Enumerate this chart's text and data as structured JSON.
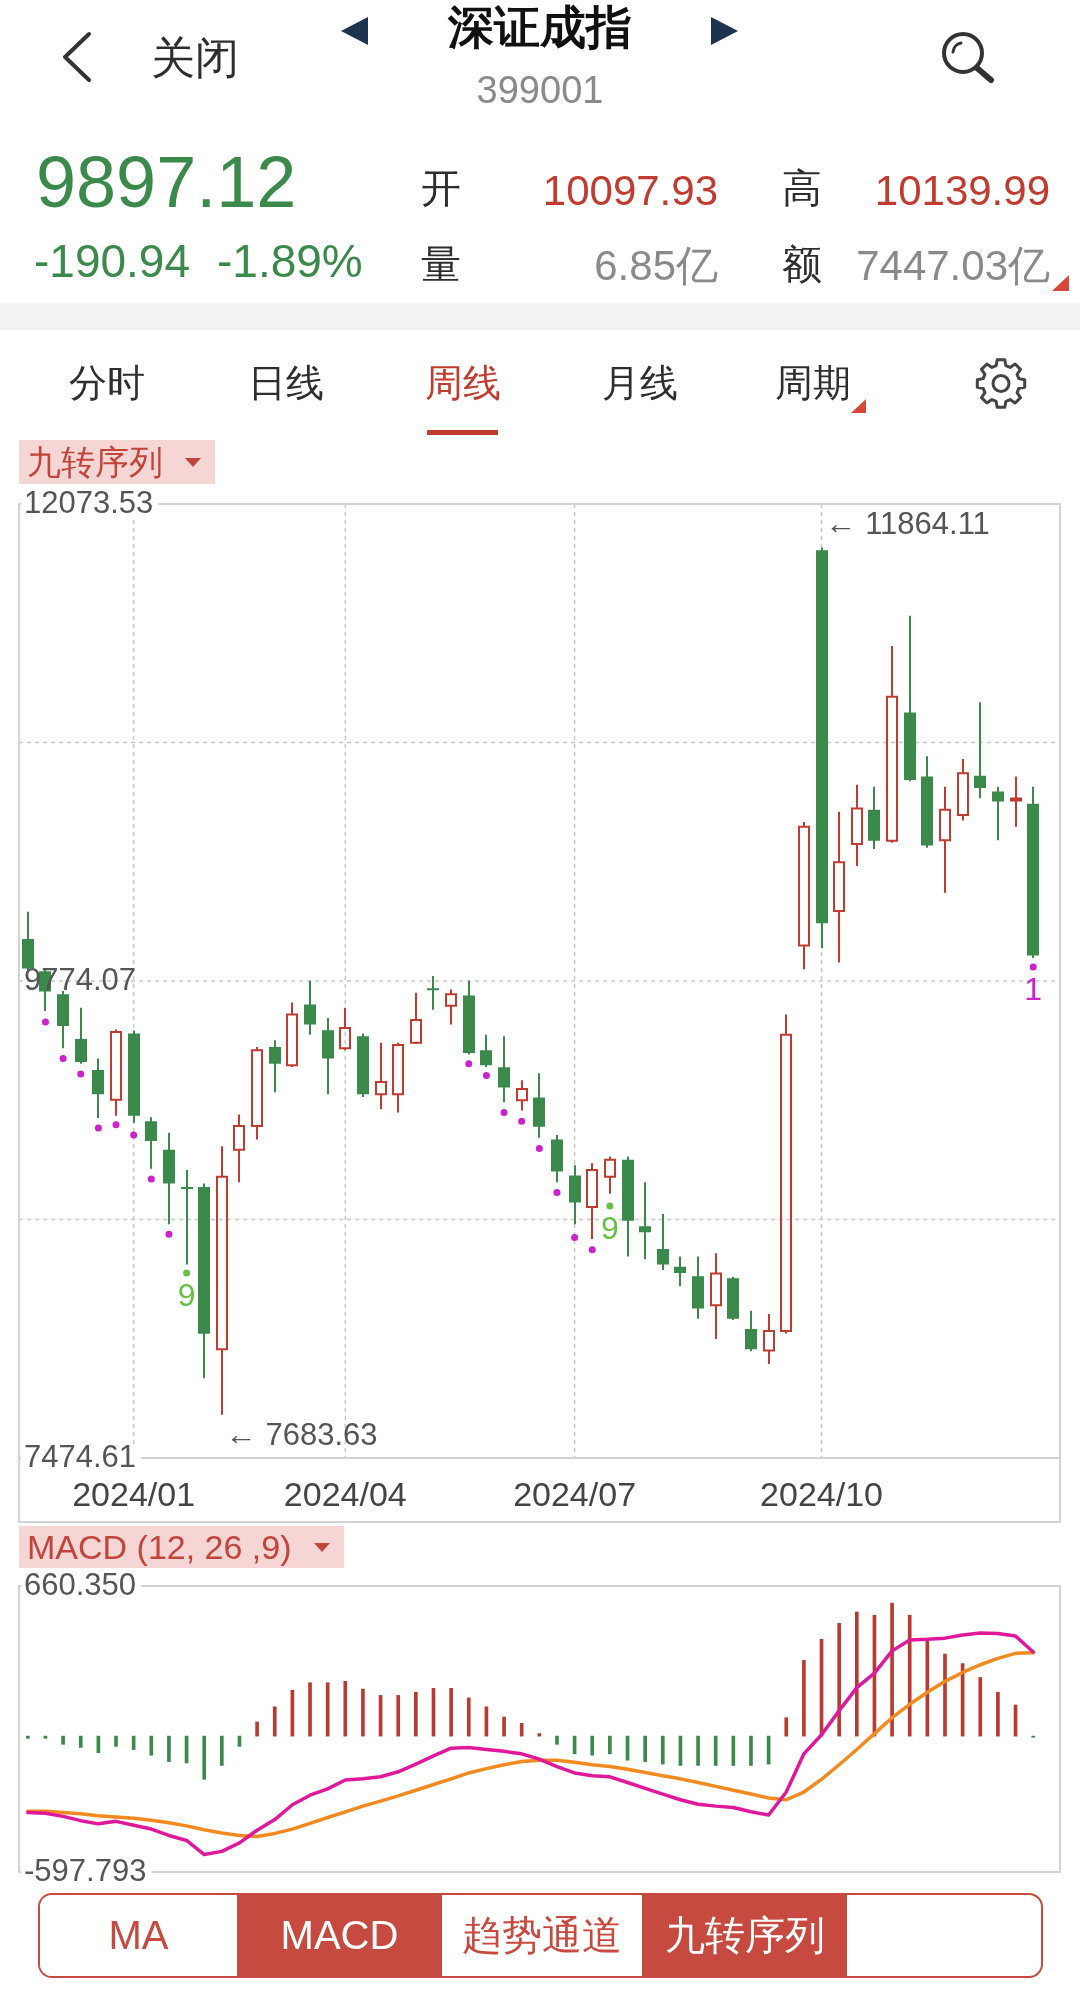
{
  "chart_data": [
    {
      "type": "other",
      "title": "深证成指",
      "subtitle": "399001",
      "annotations": [
        "关闭",
        "9897.12",
        "-190.94",
        "-1.89%",
        "开",
        "10097.93",
        "高",
        "10139.99",
        "量",
        "6.85亿",
        "额",
        "7447.03亿",
        "分时",
        "日线",
        "周线",
        "月线",
        "周期"
      ]
    },
    {
      "type": "candlestick",
      "title": "九转序列",
      "categories": [
        null,
        null,
        null,
        null,
        null,
        null,
        "2024/01",
        null,
        null,
        null,
        null,
        null,
        null,
        null,
        null,
        null,
        null,
        null,
        "2024/04",
        null,
        null,
        null,
        null,
        null,
        null,
        null,
        null,
        null,
        null,
        null,
        null,
        "2024/07",
        null,
        null,
        null,
        null,
        null,
        null,
        null,
        null,
        null,
        null,
        null,
        null,
        null,
        "2024/10",
        null,
        null,
        null,
        null,
        null,
        null,
        null,
        null,
        null,
        null,
        null,
        null
      ],
      "ohlc": [
        [
          9977,
          10108,
          9824,
          9834
        ],
        [
          9821,
          9831,
          9629,
          9723
        ],
        [
          9710,
          9726,
          9450,
          9557
        ],
        [
          9495,
          9645,
          9375,
          9384
        ],
        [
          9345,
          9401,
          9114,
          9228
        ],
        [
          9202,
          9540,
          9124,
          9528
        ],
        [
          9521,
          9535,
          9091,
          9124
        ],
        [
          9098,
          9117,
          8869,
          9003
        ],
        [
          8961,
          9042,
          8602,
          8798
        ],
        [
          8780,
          8863,
          8407,
          8772
        ],
        [
          8781,
          8798,
          7859,
          8074
        ],
        [
          7999,
          8977,
          7683.63,
          8830
        ],
        [
          8961,
          9130,
          8804,
          9075
        ],
        [
          9075,
          9456,
          9010,
          9440
        ],
        [
          9456,
          9489,
          9238,
          9375
        ],
        [
          9368,
          9671,
          9360,
          9612
        ],
        [
          9661,
          9775,
          9515,
          9564
        ],
        [
          9537,
          9596,
          9228,
          9401
        ],
        [
          9450,
          9645,
          9440,
          9547
        ],
        [
          9508,
          9521,
          9215,
          9228
        ],
        [
          9228,
          9476,
          9156,
          9287
        ],
        [
          9228,
          9476,
          9140,
          9466
        ],
        [
          9476,
          9717,
          9470,
          9586
        ],
        [
          9738,
          9798,
          9635,
          9730
        ],
        [
          9655,
          9733,
          9564,
          9710
        ],
        [
          9704,
          9775,
          9420,
          9427
        ],
        [
          9440,
          9515,
          9360,
          9368
        ],
        [
          9358,
          9508,
          9189,
          9261
        ],
        [
          9199,
          9296,
          9150,
          9254
        ],
        [
          9212,
          9329,
          9019,
          9071
        ],
        [
          9010,
          9032,
          8804,
          8856
        ],
        [
          8837,
          8886,
          8602,
          8706
        ],
        [
          8684,
          8896,
          8530,
          8863
        ],
        [
          8830,
          8928,
          8749,
          8912
        ],
        [
          8912,
          8928,
          8446,
          8618
        ],
        [
          8592,
          8804,
          8433,
          8563
        ],
        [
          8482,
          8651,
          8381,
          8407
        ],
        [
          8397,
          8446,
          8302,
          8367
        ],
        [
          8351,
          8446,
          8146,
          8195
        ],
        [
          8211,
          8462,
          8048,
          8364
        ],
        [
          8341,
          8348,
          8140,
          8146
        ],
        [
          8097,
          8185,
          7989,
          7999
        ],
        [
          7993,
          8169,
          7928,
          8087
        ],
        [
          8087,
          9612,
          8075,
          9515
        ],
        [
          9945,
          10541,
          9831,
          10518
        ],
        [
          11850,
          11864.11,
          9932,
          10052
        ],
        [
          10111,
          10590,
          9863,
          10346
        ],
        [
          10434,
          10720,
          10329,
          10606
        ],
        [
          10600,
          10711,
          10411,
          10450
        ],
        [
          10450,
          11389,
          10440,
          11144
        ],
        [
          11069,
          11535,
          10737,
          10743
        ],
        [
          10760,
          10857,
          10417,
          10427
        ],
        [
          10453,
          10711,
          10199,
          10600
        ],
        [
          10574,
          10844,
          10548,
          10776
        ],
        [
          10763,
          11118,
          10655,
          10704
        ],
        [
          10688,
          10711,
          10453,
          10639
        ],
        [
          10645,
          10760,
          10518,
          10652
        ],
        [
          10629,
          10711,
          9885,
          9897.12
        ]
      ],
      "colors": [
        "#3b8a4c",
        "#3b8a4c",
        "#3b8a4c",
        "#3b8a4c",
        "#3b8a4c",
        "#c23b30",
        "#3b8a4c",
        "#3b8a4c",
        "#3b8a4c",
        "#3b8a4c",
        "#3b8a4c",
        "#c23b30",
        "#c23b30",
        "#c23b30",
        "#3b8a4c",
        "#c23b30",
        "#3b8a4c",
        "#3b8a4c",
        "#c23b30",
        "#3b8a4c",
        "#c23b30",
        "#c23b30",
        "#c23b30",
        "#3b8a4c",
        "#c23b30",
        "#3b8a4c",
        "#3b8a4c",
        "#3b8a4c",
        "#c23b30",
        "#3b8a4c",
        "#3b8a4c",
        "#3b8a4c",
        "#c23b30",
        "#c23b30",
        "#3b8a4c",
        "#3b8a4c",
        "#3b8a4c",
        "#3b8a4c",
        "#3b8a4c",
        "#c23b30",
        "#3b8a4c",
        "#3b8a4c",
        "#c23b30",
        "#c23b30",
        "#c23b30",
        "#3b8a4c",
        "#c23b30",
        "#c23b30",
        "#3b8a4c",
        "#c23b30",
        "#3b8a4c",
        "#3b8a4c",
        "#c23b30",
        "#c23b30",
        "#3b8a4c",
        "#3b8a4c",
        "#c23b30",
        "#3b8a4c"
      ],
      "ylim": [
        7474.61,
        12073.53
      ],
      "yticks": [
        7474.61,
        {
          "value": 8624.34,
          "label": null
        },
        9774.07,
        {
          "value": 10923.8,
          "label": null
        },
        12073.53
      ],
      "grid": true,
      "series": [
        {
          "type": "scatter",
          "color": "#cc22cc",
          "marker": "circle",
          "values": [
            null,
            9577,
            9401,
            9326,
            9065,
            9081,
            9032,
            8820,
            8553,
            null,
            null,
            null,
            null,
            null,
            null,
            null,
            null,
            null,
            null,
            null,
            null,
            null,
            null,
            null,
            null,
            9375,
            9319,
            9140,
            9098,
            8967,
            8755,
            8537,
            8478,
            null,
            null,
            null,
            null,
            null,
            null,
            null,
            null,
            null,
            null,
            null,
            null,
            null,
            null,
            null,
            null,
            null,
            null,
            null,
            null,
            null,
            null,
            null,
            null,
            9841
          ]
        },
        {
          "type": "scatter",
          "color": "#66c044",
          "marker": "circle",
          "values": [
            null,
            null,
            null,
            null,
            null,
            null,
            null,
            null,
            null,
            8367,
            null,
            null,
            null,
            null,
            null,
            null,
            null,
            null,
            null,
            null,
            null,
            null,
            null,
            null,
            null,
            null,
            null,
            null,
            null,
            null,
            null,
            null,
            null,
            8690,
            null,
            null,
            null,
            null,
            null,
            null,
            null,
            null,
            null,
            null,
            null,
            null,
            null,
            null,
            null,
            null,
            null,
            null,
            null,
            null,
            null,
            null,
            null,
            null
          ]
        }
      ],
      "annotations": [
        "← 11864.11",
        "← 7683.63",
        "9",
        "9",
        "1"
      ]
    },
    {
      "type": "bar",
      "title": "MACD (12, 26 ,9)",
      "categories": [
        null,
        null,
        null,
        null,
        null,
        null,
        "2024/01",
        null,
        null,
        null,
        null,
        null,
        null,
        null,
        null,
        null,
        null,
        null,
        "2024/04",
        null,
        null,
        null,
        null,
        null,
        null,
        null,
        null,
        null,
        null,
        null,
        null,
        "2024/07",
        null,
        null,
        null,
        null,
        null,
        null,
        null,
        null,
        null,
        null,
        null,
        null,
        null,
        "2024/10",
        null,
        null,
        null,
        null,
        null,
        null,
        null,
        null,
        null,
        null,
        null,
        null
      ],
      "tick_labels": "y",
      "ylim": [
        -597.793,
        660.35
      ],
      "yticks": [
        -597.793,
        {
          "value": 660.35,
          "label": "660.350"
        }
      ],
      "series": [
        {
          "type": "bar",
          "colors": [
            "#3b8a4c",
            "#3b8a4c",
            "#3b8a4c",
            "#3b8a4c",
            "#3b8a4c",
            "#3b8a4c",
            "#3b8a4c",
            "#3b8a4c",
            "#3b8a4c",
            "#3b8a4c",
            "#3b8a4c",
            "#3b8a4c",
            "#3b8a4c",
            "#b83a30",
            "#b83a30",
            "#b83a30",
            "#b83a30",
            "#b83a30",
            "#b83a30",
            "#b83a30",
            "#b83a30",
            "#b83a30",
            "#b83a30",
            "#b83a30",
            "#b83a30",
            "#b83a30",
            "#b83a30",
            "#b83a30",
            "#b83a30",
            "#b83a30",
            "#3b8a4c",
            "#3b8a4c",
            "#3b8a4c",
            "#3b8a4c",
            "#3b8a4c",
            "#3b8a4c",
            "#3b8a4c",
            "#3b8a4c",
            "#3b8a4c",
            "#3b8a4c",
            "#3b8a4c",
            "#3b8a4c",
            "#3b8a4c",
            "#b83a30",
            "#b83a30",
            "#b83a30",
            "#b83a30",
            "#b83a30",
            "#b83a30",
            "#b83a30",
            "#b83a30",
            "#b83a30",
            "#b83a30",
            "#b83a30",
            "#b83a30",
            "#b83a30",
            "#b83a30",
            "#3b8a4c"
          ],
          "values": [
            -10,
            -10,
            -36,
            -50,
            -73,
            -45,
            -59,
            -84,
            -112,
            -118,
            -190,
            -129,
            -45,
            62,
            129,
            202,
            235,
            235,
            241,
            207,
            179,
            179,
            193,
            210,
            210,
            168,
            129,
            84,
            56,
            11,
            -36,
            -78,
            -84,
            -78,
            -106,
            -112,
            -123,
            -129,
            -129,
            -129,
            -129,
            -129,
            -123,
            81,
            333,
            426,
            496,
            546,
            532,
            585,
            532,
            417,
            361,
            319,
            258,
            193,
            137,
            -5
          ]
        },
        {
          "type": "line",
          "color": "#e0189b",
          "values": [
            -336,
            -339,
            -353,
            -372,
            -386,
            -375,
            -392,
            -409,
            -437,
            -459,
            -521,
            -507,
            -470,
            -414,
            -367,
            -302,
            -260,
            -232,
            -193,
            -188,
            -179,
            -157,
            -123,
            -87,
            -53,
            -50,
            -59,
            -67,
            -78,
            -101,
            -134,
            -162,
            -174,
            -179,
            -204,
            -230,
            -255,
            -280,
            -300,
            -308,
            -314,
            -333,
            -347,
            -246,
            -78,
            6,
            112,
            213,
            277,
            375,
            423,
            426,
            431,
            445,
            454,
            451,
            440,
            370
          ]
        },
        {
          "type": "line",
          "color": "#f28a1f",
          "values": [
            -330,
            -330,
            -336,
            -342,
            -350,
            -356,
            -361,
            -370,
            -381,
            -395,
            -412,
            -426,
            -437,
            -442,
            -428,
            -409,
            -384,
            -358,
            -333,
            -308,
            -286,
            -263,
            -238,
            -213,
            -188,
            -162,
            -143,
            -126,
            -112,
            -106,
            -106,
            -115,
            -126,
            -134,
            -146,
            -160,
            -174,
            -188,
            -204,
            -221,
            -238,
            -255,
            -272,
            -280,
            -246,
            -190,
            -126,
            -59,
            11,
            81,
            140,
            193,
            241,
            280,
            314,
            342,
            364,
            367
          ]
        }
      ]
    },
    {
      "type": "other",
      "annotations": [
        "MA",
        "MACD",
        "趋势通道",
        "九转序列"
      ]
    }
  ]
}
